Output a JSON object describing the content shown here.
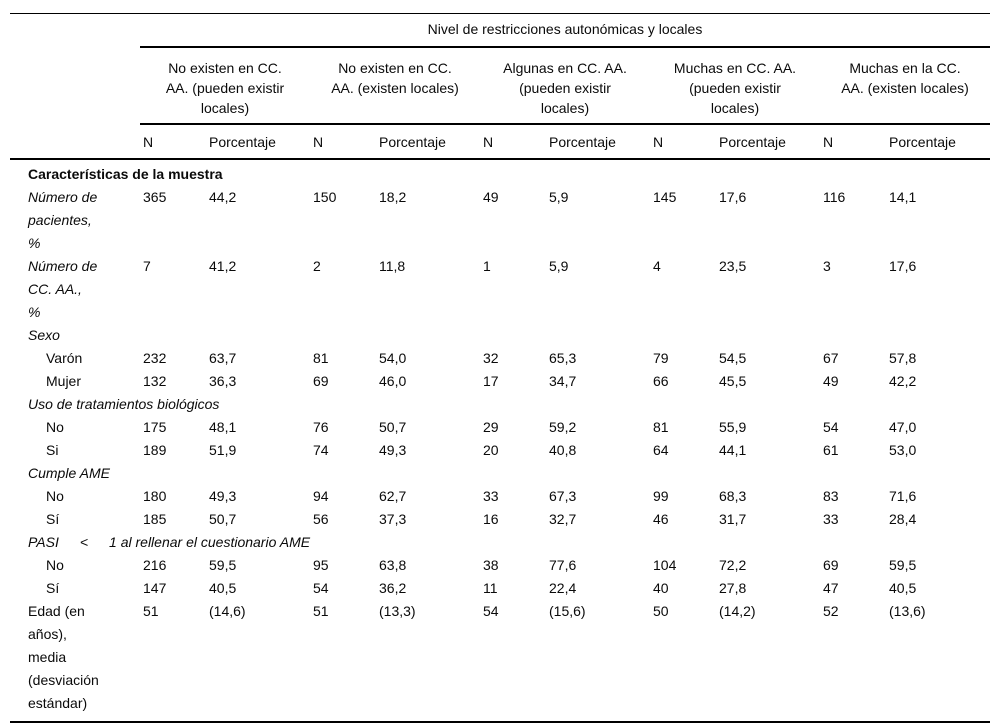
{
  "table": {
    "title": "Nivel de restricciones autonómicas y locales",
    "groups": [
      {
        "label": "No existen en CC.\nAA. (pueden existir\nlocales)"
      },
      {
        "label": "No existen en CC.\nAA. (existen locales)"
      },
      {
        "label": "Algunas en CC. AA.\n(pueden existir\nlocales)"
      },
      {
        "label": "Muchas en CC. AA.\n(pueden existir\nlocales)"
      },
      {
        "label": "Muchas en la CC.\nAA. (existen locales)"
      }
    ],
    "subheaders": {
      "n": "N",
      "pct": "Porcentaje"
    },
    "rows": [
      {
        "type": "section-bold",
        "label": "Características de la muestra"
      },
      {
        "type": "data-italic",
        "label": "Número de\npacientes,\n%",
        "values": [
          "365",
          "44,2",
          "150",
          "18,2",
          "49",
          "5,9",
          "145",
          "17,6",
          "116",
          "14,1"
        ]
      },
      {
        "type": "data-italic",
        "label": "Número de\nCC. AA.,\n%",
        "values": [
          "7",
          "41,2",
          "2",
          "11,8",
          "1",
          "5,9",
          "4",
          "23,5",
          "3",
          "17,6"
        ]
      },
      {
        "type": "section-italic",
        "label": "Sexo"
      },
      {
        "type": "data-indent",
        "label": "Varón",
        "values": [
          "232",
          "63,7",
          "81",
          "54,0",
          "32",
          "65,3",
          "79",
          "54,5",
          "67",
          "57,8"
        ]
      },
      {
        "type": "data-indent",
        "label": "Mujer",
        "values": [
          "132",
          "36,3",
          "69",
          "46,0",
          "17",
          "34,7",
          "66",
          "45,5",
          "49",
          "42,2"
        ]
      },
      {
        "type": "section-italic",
        "label": "Uso de tratamientos biológicos"
      },
      {
        "type": "data-indent",
        "label": "No",
        "values": [
          "175",
          "48,1",
          "76",
          "50,7",
          "29",
          "59,2",
          "81",
          "55,9",
          "54",
          "47,0"
        ]
      },
      {
        "type": "data-indent",
        "label": "Si",
        "values": [
          "189",
          "51,9",
          "74",
          "49,3",
          "20",
          "40,8",
          "64",
          "44,1",
          "61",
          "53,0"
        ]
      },
      {
        "type": "section-italic",
        "label": "Cumple AME"
      },
      {
        "type": "data-indent",
        "label": "No",
        "values": [
          "180",
          "49,3",
          "94",
          "62,7",
          "33",
          "67,3",
          "99",
          "68,3",
          "83",
          "71,6"
        ]
      },
      {
        "type": "data-indent",
        "label": "Sí",
        "values": [
          "185",
          "50,7",
          "56",
          "37,3",
          "16",
          "32,7",
          "46",
          "31,7",
          "33",
          "28,4"
        ]
      },
      {
        "type": "section-italic",
        "label": "PASI  <  1 al rellenar el cuestionario AME"
      },
      {
        "type": "data-indent",
        "label": "No",
        "values": [
          "216",
          "59,5",
          "95",
          "63,8",
          "38",
          "77,6",
          "104",
          "72,2",
          "69",
          "59,5"
        ]
      },
      {
        "type": "data-indent",
        "label": "Sí",
        "values": [
          "147",
          "40,5",
          "54",
          "36,2",
          "11",
          "22,4",
          "40",
          "27,8",
          "47",
          "40,5"
        ]
      },
      {
        "type": "data-plain",
        "label": "Edad (en\naños),\nmedia\n(desviación\nestándar)",
        "values": [
          "51",
          "(14,6)",
          "51",
          "(13,3)",
          "54",
          "(15,6)",
          "50",
          "(14,2)",
          "52",
          "(13,6)"
        ]
      }
    ]
  }
}
